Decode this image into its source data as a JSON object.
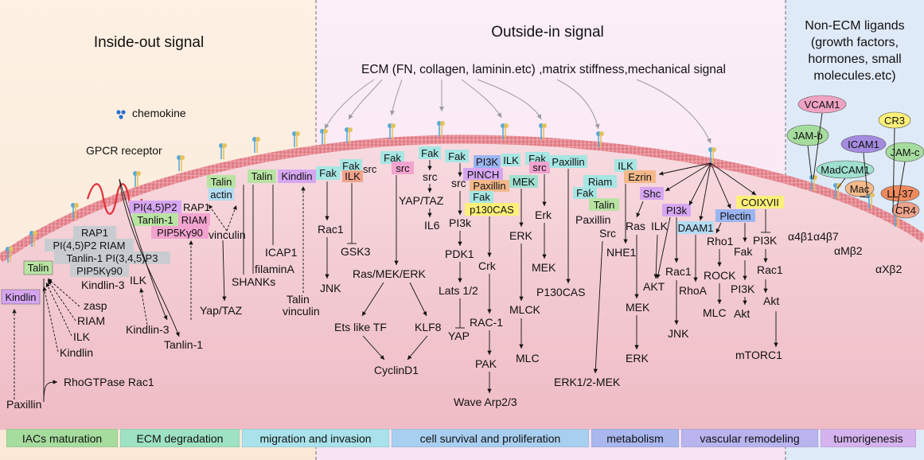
{
  "headings": {
    "inside_out": "Inside-out signal",
    "outside_in": "Outside-in signal",
    "non_ecm": [
      "Non-ECM ligands",
      "(growth factors,",
      "hormones, small",
      "molecules.etc)"
    ]
  },
  "ecm_line": "ECM (FN, collagen, laminin.etc) ,matrix stiffness,mechanical signal",
  "colors": {
    "green": "#b9e3a3",
    "gray": "#c8ccd0",
    "violet": "#d6a6f1",
    "lblue": "#b3dcf3",
    "cyan": "#a6e6e3",
    "teal": "#9fe0cf",
    "orange": "#f3b98a",
    "yellow": "#fdf07a",
    "salmon": "#f0a38c",
    "lav": "#c7c2f1",
    "pblue": "#9bb5f1",
    "pink": "#f3a3cf"
  },
  "inside": {
    "chemokine": "chemokine",
    "gpcr": "GPCR receptor",
    "kindlin_box": "Kindlin",
    "talin_box": "Talin",
    "rap1": "RAP1",
    "pi45p2_riam": "PI(4,5)P2 RIAM",
    "tanlin1_pi345p3": "Tanlin-1 PI(3,4,5)P3",
    "pip5k": "PIP5Kγ90",
    "kindlin3": "Kindlin-3",
    "ilk": "ILK",
    "pi45p2_b": "PI(4,5)P2",
    "rap1_b": "RAP1",
    "tanlin1_b": "Tanlin-1",
    "riam_b": "RIAM",
    "pip5k_b": "PIP5Kγ90",
    "talin_b": "Talin",
    "actin": "actin",
    "vinculin": "vinculin",
    "yap_taz": "Yap/TAZ",
    "talin_c": "Talin",
    "kindlin_c": "Kindlin",
    "filaminA": "filaminA",
    "icap1": "ICAP1",
    "shanks": "SHANKs",
    "talin_vinculin": [
      "Talin",
      "vinculin"
    ],
    "zasp": "zasp",
    "riam": "RIAM",
    "ilk2": "ILK",
    "kindlin": "Kindlin",
    "kindlin3b": "Kindlin-3",
    "tanlin1c": "Tanlin-1",
    "paxillin": "Paxillin",
    "rho": "RhoGTPase Rac1"
  },
  "outside": {
    "fak1": "Fak",
    "rac1": "Rac1",
    "jnk": "JNK",
    "fak2": "Fak",
    "src1": "src",
    "ilk1": "ILK",
    "gsk3": "GSK3",
    "fak3": "Fak",
    "src2": "src",
    "rasmek": "Ras/MEK/ERK",
    "ets": "Ets like TF",
    "klf8": "KLF8",
    "cyclind1": "CyclinD1",
    "fak4": "Fak",
    "src3": "src",
    "yaptaz": "YAP/TAZ",
    "il6": "IL6",
    "fak5": "Fak",
    "src4": "src",
    "pi3k1": "PI3k",
    "pdk1": "PDK1",
    "lats": "Lats 1/2",
    "yap": "YAP",
    "pi3k_box": "PI3K",
    "ilk_box": "ILK",
    "pinch": "PINCH",
    "paxillin1": "Paxillin",
    "fak6": "Fak",
    "p130cas1": "p130CAS",
    "crk": "Crk",
    "rac1b": "RAC-1",
    "pak": "PAK",
    "wave": "Wave Arp2/3",
    "mek1": "MEK",
    "erk1": "ERK",
    "mlck": "MLCK",
    "mlc1": "MLC",
    "fak7": "Fak",
    "src5": "src",
    "paxillin2": "Paxillin",
    "erk2": "Erk",
    "mek2": "MEK",
    "p130cas2": "P130CAS",
    "riam": "Riam",
    "fak8": "Fak",
    "talin": "Talin",
    "paxillin3": "Paxillin",
    "src6": "Src",
    "erk12mek": "ERK1/2-MEK",
    "ilk2": "ILK",
    "ezrin": "Ezrin",
    "nhe1": "NHE1",
    "shc": "Shc",
    "ras": "Ras",
    "ilk3": "ILK",
    "akt1": "AKT",
    "mek3": "MEK",
    "erk3": "ERK",
    "pi3k2": "PI3k",
    "rac1c": "Rac1",
    "jnk2": "JNK",
    "daam1": "DAAM1",
    "rhoa": "RhoA",
    "plectin": "Plectin",
    "rho1": "Rho1",
    "rock": "ROCK",
    "mlc2": "MLC",
    "fak9": "Fak",
    "pi3k3": "PI3K",
    "akt2": "Akt",
    "coixvii": "COIXVII",
    "pi3k4": "PI3K",
    "rac1d": "Rac1",
    "akt3": "Akt",
    "mtorc1": "mTORC1"
  },
  "non_ecm": {
    "vcam1": "VCAM1",
    "jamb": "JAM-b",
    "icam1": "ICAM1",
    "cr3": "CR3",
    "jamc": "JAM-c",
    "madcam1": "MadCAM1",
    "mac": "Mac",
    "ll37": "LL-37",
    "cr4": "CR4",
    "a4b1": "α4β1",
    "a4b7": "α4β7",
    "amb2": "αMβ2",
    "axb2": "αXβ2"
  },
  "legend": [
    {
      "label": "IACs maturation",
      "color": "#a6dc9e"
    },
    {
      "label": "ECM degradation",
      "color": "#9ee2c3"
    },
    {
      "label": "migration and invasion",
      "color": "#a9e2ea"
    },
    {
      "label": "cell survival and proliferation",
      "color": "#a9cff0"
    },
    {
      "label": "metabolism",
      "color": "#a9b7ee"
    },
    {
      "label": "vascular remodeling",
      "color": "#b9b3ee"
    },
    {
      "label": "tumorigenesis",
      "color": "#d4b3ee"
    }
  ]
}
